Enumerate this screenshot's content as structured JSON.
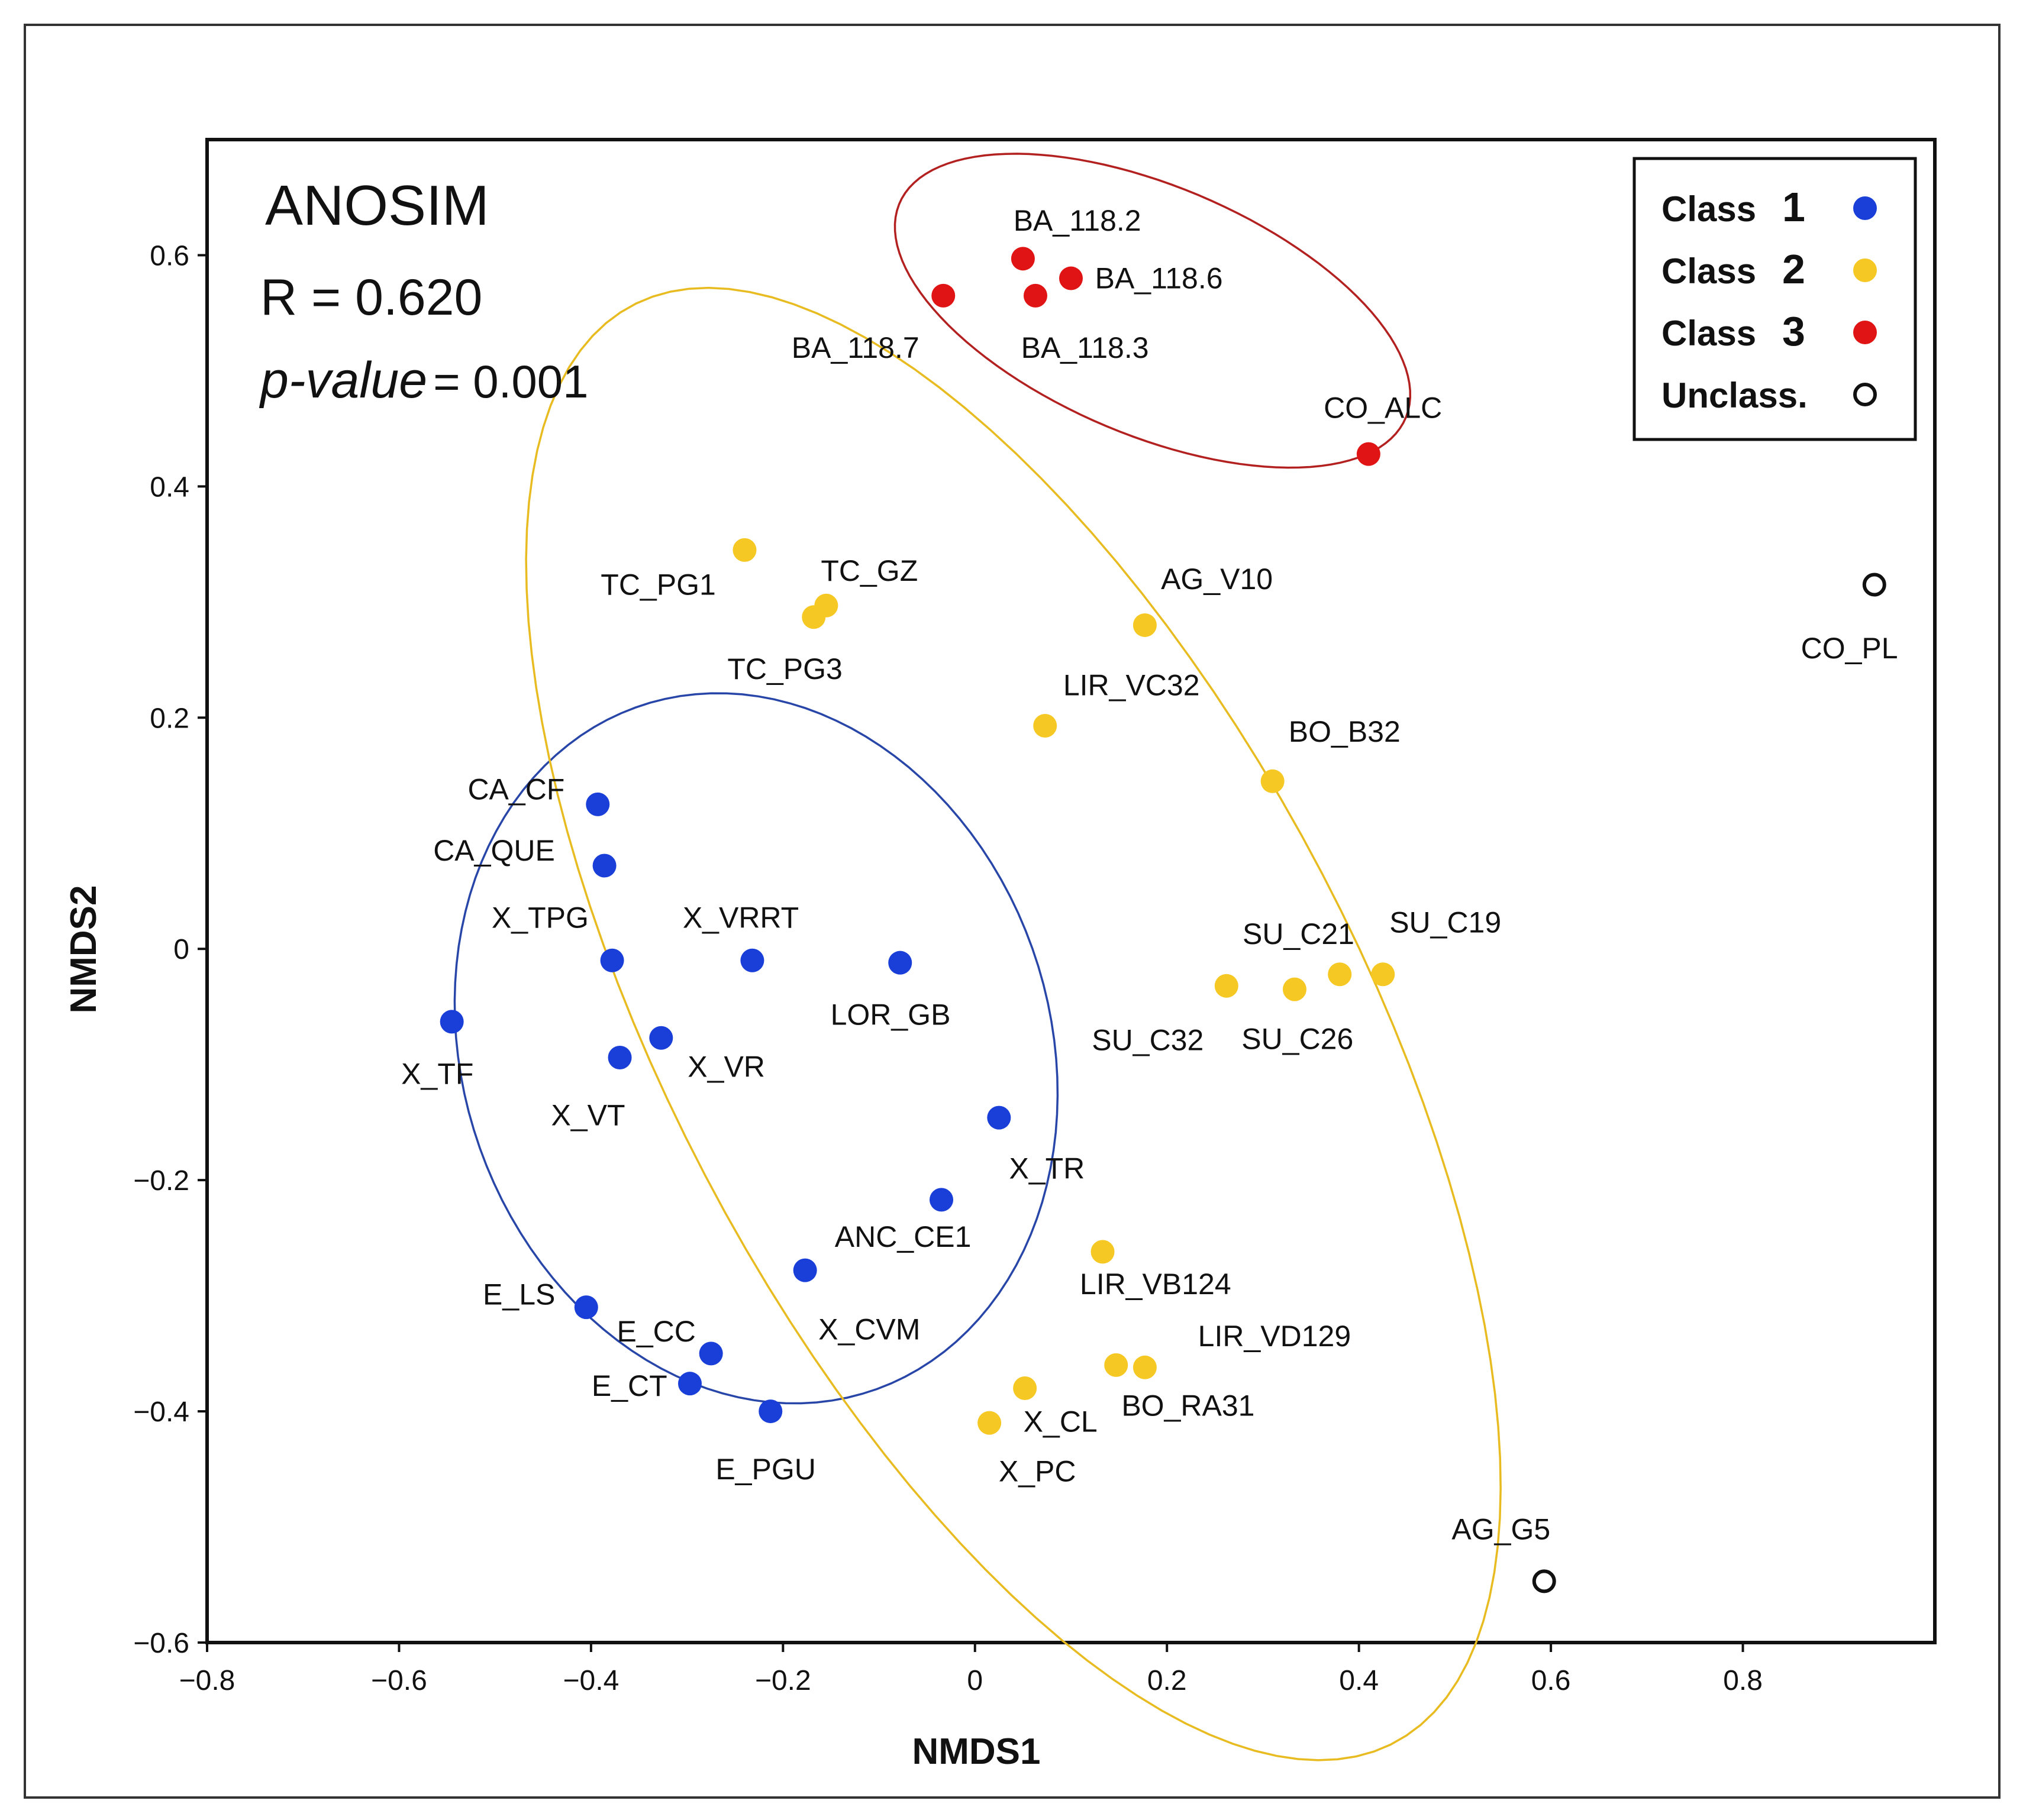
{
  "chart_data": {
    "type": "scatter",
    "xlabel": "NMDS1",
    "ylabel": "NMDS2",
    "xlim": [
      -0.8,
      1.0
    ],
    "ylim": [
      -0.6,
      0.7
    ],
    "xticks": [
      -0.8,
      -0.6,
      -0.4,
      -0.2,
      0,
      0.2,
      0.4,
      0.6,
      0.8
    ],
    "yticks": [
      -0.6,
      -0.4,
      -0.2,
      0,
      0.2,
      0.4,
      0.6
    ],
    "xtick_labels": [
      "−0.8",
      "−0.6",
      "−0.4",
      "−0.2",
      "0",
      "0.2",
      "0.4",
      "0.6",
      "0.8"
    ],
    "ytick_labels": [
      "−0.6",
      "−0.4",
      "−0.2",
      "0",
      "0.2",
      "0.4",
      "0.6"
    ],
    "stats": {
      "title": "ANOSIM",
      "r_label": "R = ",
      "r_value": "0.620",
      "p_label": "p-value",
      "p_value": "= 0.001"
    },
    "legend": {
      "position": "top-right",
      "items": [
        {
          "class": "1",
          "word": "Class",
          "number": "1",
          "color": "#1a3fd9",
          "hollow": false
        },
        {
          "class": "2",
          "word": "Class",
          "number": "2",
          "color": "#f5c823",
          "hollow": false
        },
        {
          "class": "3",
          "word": "Class",
          "number": "3",
          "color": "#e01414",
          "hollow": false
        },
        {
          "class": "U",
          "word": "Unclass.",
          "number": "",
          "color": "#111111",
          "hollow": true
        }
      ]
    },
    "colors": {
      "class1": "#1a3fd9",
      "class2": "#f5c823",
      "class3": "#e01414",
      "unclassified": "#111111",
      "ellipse1": "#2846a8",
      "ellipse2": "#e8bb20",
      "ellipse3": "#b32020"
    },
    "ellipses": [
      {
        "class": "1",
        "cx": -0.228,
        "cy": -0.086,
        "rx": 0.33,
        "ry": 0.29,
        "angle_deg": -40
      },
      {
        "class": "2",
        "cx": 0.04,
        "cy": -0.065,
        "rx": 0.74,
        "ry": 0.34,
        "angle_deg": -55
      },
      {
        "class": "3",
        "cx": 0.185,
        "cy": 0.552,
        "rx": 0.28,
        "ry": 0.11,
        "angle_deg": -18
      }
    ],
    "points": [
      {
        "label": "BA_118.2",
        "x": 0.05,
        "y": 0.597,
        "class": "3",
        "label_dx": -0.01,
        "label_dy": 0.033,
        "anchor": "start"
      },
      {
        "label": "BA_118.6",
        "x": 0.1,
        "y": 0.58,
        "class": "3",
        "label_dx": 0.025,
        "label_dy": 0.0,
        "anchor": "start"
      },
      {
        "label": "BA_118.7",
        "x": -0.033,
        "y": 0.565,
        "class": "3",
        "label_dx": -0.025,
        "label_dy": -0.045,
        "anchor": "end"
      },
      {
        "label": "BA_118.3",
        "x": 0.063,
        "y": 0.565,
        "class": "3",
        "label_dx": -0.015,
        "label_dy": -0.045,
        "anchor": "start"
      },
      {
        "label": "CO_ALC",
        "x": 0.41,
        "y": 0.428,
        "class": "3",
        "label_dx": 0.015,
        "label_dy": 0.04,
        "anchor": "middle"
      },
      {
        "label": "TC_PG1",
        "x": -0.24,
        "y": 0.345,
        "class": "2",
        "label_dx": -0.03,
        "label_dy": -0.03,
        "anchor": "end"
      },
      {
        "label": "TC_GZ",
        "x": -0.155,
        "y": 0.297,
        "class": "2",
        "label_dx": 0.045,
        "label_dy": 0.03,
        "anchor": "middle"
      },
      {
        "label": "TC_PG3",
        "x": -0.168,
        "y": 0.287,
        "class": "2",
        "label_dx": -0.03,
        "label_dy": -0.045,
        "anchor": "middle"
      },
      {
        "label": "AG_V10",
        "x": 0.177,
        "y": 0.28,
        "class": "2",
        "label_dx": 0.075,
        "label_dy": 0.04,
        "anchor": "middle"
      },
      {
        "label": "LIR_VC32",
        "x": 0.073,
        "y": 0.193,
        "class": "2",
        "label_dx": 0.09,
        "label_dy": 0.035,
        "anchor": "middle"
      },
      {
        "label": "BO_B32",
        "x": 0.31,
        "y": 0.145,
        "class": "2",
        "label_dx": 0.075,
        "label_dy": 0.043,
        "anchor": "middle"
      },
      {
        "label": "SU_C21",
        "x": 0.262,
        "y": -0.032,
        "class": "2",
        "label_dx": 0.075,
        "label_dy": 0.045,
        "anchor": "middle"
      },
      {
        "label": "SU_C26",
        "x": 0.333,
        "y": -0.035,
        "class": "2",
        "label_dx": 0.003,
        "label_dy": -0.043,
        "anchor": "middle"
      },
      {
        "label": "SU_C32",
        "x": 0.38,
        "y": -0.022,
        "class": "2",
        "label_dx": -0.2,
        "label_dy": -0.057,
        "anchor": "middle"
      },
      {
        "label": "SU_C19",
        "x": 0.425,
        "y": -0.022,
        "class": "2",
        "label_dx": 0.065,
        "label_dy": 0.045,
        "anchor": "middle"
      },
      {
        "label": "LIR_VB124",
        "x": 0.133,
        "y": -0.262,
        "class": "2",
        "label_dx": 0.055,
        "label_dy": -0.028,
        "anchor": "middle"
      },
      {
        "label": "LIR_VD129",
        "x": 0.147,
        "y": -0.36,
        "class": "2",
        "label_dx": 0.165,
        "label_dy": 0.025,
        "anchor": "middle"
      },
      {
        "label": "BO_RA31",
        "x": 0.177,
        "y": -0.362,
        "class": "2",
        "label_dx": 0.045,
        "label_dy": -0.033,
        "anchor": "middle"
      },
      {
        "label": "X_CL",
        "x": 0.052,
        "y": -0.38,
        "class": "2",
        "label_dx": 0.037,
        "label_dy": -0.029,
        "anchor": "middle"
      },
      {
        "label": "X_PC",
        "x": 0.015,
        "y": -0.41,
        "class": "2",
        "label_dx": 0.05,
        "label_dy": -0.042,
        "anchor": "middle"
      },
      {
        "label": "CA_CF",
        "x": -0.393,
        "y": 0.125,
        "class": "1",
        "label_dx": -0.085,
        "label_dy": 0.013,
        "anchor": "middle"
      },
      {
        "label": "CA_QUE",
        "x": -0.386,
        "y": 0.072,
        "class": "1",
        "label_dx": -0.115,
        "label_dy": 0.013,
        "anchor": "middle"
      },
      {
        "label": "X_TPG",
        "x": -0.378,
        "y": -0.01,
        "class": "1",
        "label_dx": -0.075,
        "label_dy": 0.037,
        "anchor": "middle"
      },
      {
        "label": "X_VRRT",
        "x": -0.232,
        "y": -0.01,
        "class": "1",
        "label_dx": -0.012,
        "label_dy": 0.037,
        "anchor": "middle"
      },
      {
        "label": "LOR_GB",
        "x": -0.078,
        "y": -0.012,
        "class": "1",
        "label_dx": -0.01,
        "label_dy": -0.045,
        "anchor": "middle"
      },
      {
        "label": "X_TF",
        "x": -0.545,
        "y": -0.063,
        "class": "1",
        "label_dx": -0.015,
        "label_dy": -0.045,
        "anchor": "middle"
      },
      {
        "label": "X_VR",
        "x": -0.327,
        "y": -0.077,
        "class": "1",
        "label_dx": 0.068,
        "label_dy": -0.025,
        "anchor": "middle"
      },
      {
        "label": "X_VT",
        "x": -0.37,
        "y": -0.094,
        "class": "1",
        "label_dx": -0.033,
        "label_dy": -0.05,
        "anchor": "middle"
      },
      {
        "label": "X_TR",
        "x": 0.025,
        "y": -0.146,
        "class": "1",
        "label_dx": 0.05,
        "label_dy": -0.044,
        "anchor": "middle"
      },
      {
        "label": "ANC_CE1",
        "x": -0.035,
        "y": -0.217,
        "class": "1",
        "label_dx": -0.04,
        "label_dy": -0.032,
        "anchor": "middle"
      },
      {
        "label": "X_CVM",
        "x": -0.177,
        "y": -0.278,
        "class": "1",
        "label_dx": 0.067,
        "label_dy": -0.051,
        "anchor": "middle"
      },
      {
        "label": "E_LS",
        "x": -0.405,
        "y": -0.31,
        "class": "1",
        "label_dx": -0.07,
        "label_dy": 0.011,
        "anchor": "middle"
      },
      {
        "label": "E_CC",
        "x": -0.275,
        "y": -0.35,
        "class": "1",
        "label_dx": -0.057,
        "label_dy": 0.019,
        "anchor": "middle"
      },
      {
        "label": "E_CT",
        "x": -0.297,
        "y": -0.376,
        "class": "1",
        "label_dx": -0.063,
        "label_dy": -0.002,
        "anchor": "middle"
      },
      {
        "label": "E_PGU",
        "x": -0.213,
        "y": -0.4,
        "class": "1",
        "label_dx": -0.005,
        "label_dy": -0.05,
        "anchor": "middle"
      },
      {
        "label": "CO_PL",
        "x": 0.937,
        "y": 0.315,
        "class": "U",
        "label_dx": -0.026,
        "label_dy": -0.055,
        "anchor": "middle"
      },
      {
        "label": "AG_G5",
        "x": 0.593,
        "y": -0.547,
        "class": "U",
        "label_dx": -0.045,
        "label_dy": 0.045,
        "anchor": "middle"
      }
    ]
  }
}
